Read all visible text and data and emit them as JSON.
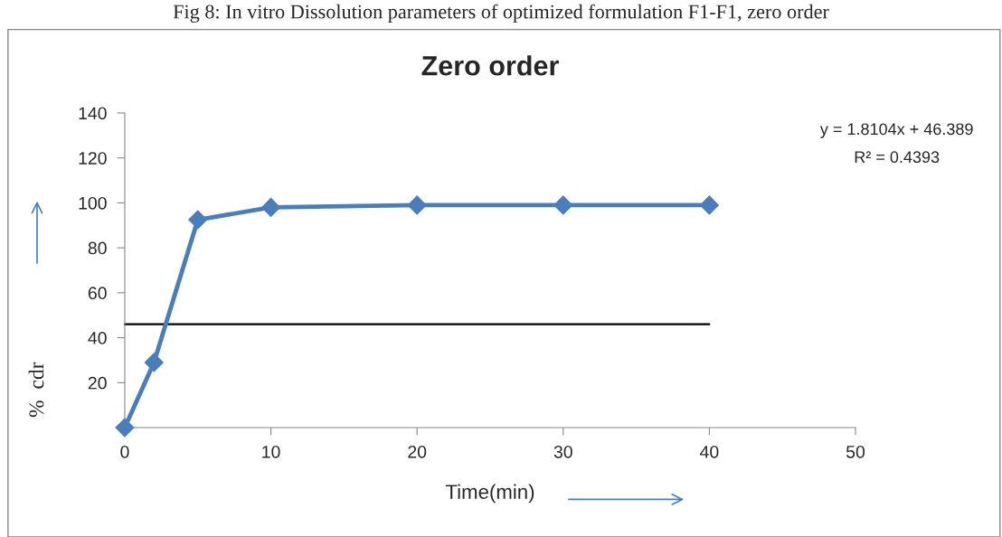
{
  "chart_data": {
    "type": "line",
    "title": "Zero order",
    "subtitle": "Fig 8: In vitro Dissolution parameters of optimized formulation F1-F1, zero order",
    "xlabel": "Time(min)",
    "ylabel": "%  cdr",
    "x": [
      0,
      2,
      5,
      10,
      20,
      30,
      40
    ],
    "series": [
      {
        "color": "#4a7ebb",
        "values": [
          0,
          29,
          92.5,
          98,
          99,
          99,
          99
        ],
        "marker": "diamond"
      },
      {
        "type": "line",
        "x": [
          0,
          40
        ],
        "color": "#000000",
        "values": [
          46,
          46
        ],
        "marker": "none"
      }
    ],
    "xlim": [
      0,
      50
    ],
    "xticks": [
      0,
      10,
      20,
      30,
      40,
      50
    ],
    "ylim": [
      0,
      140
    ],
    "yticks": [
      {
        "value": 0,
        "label": null
      },
      20,
      40,
      60,
      80,
      100,
      120,
      140
    ],
    "annotations": [
      "y = 1.8104x + 46.389",
      "R² = 0.4393"
    ],
    "grid": false,
    "legend": false
  }
}
